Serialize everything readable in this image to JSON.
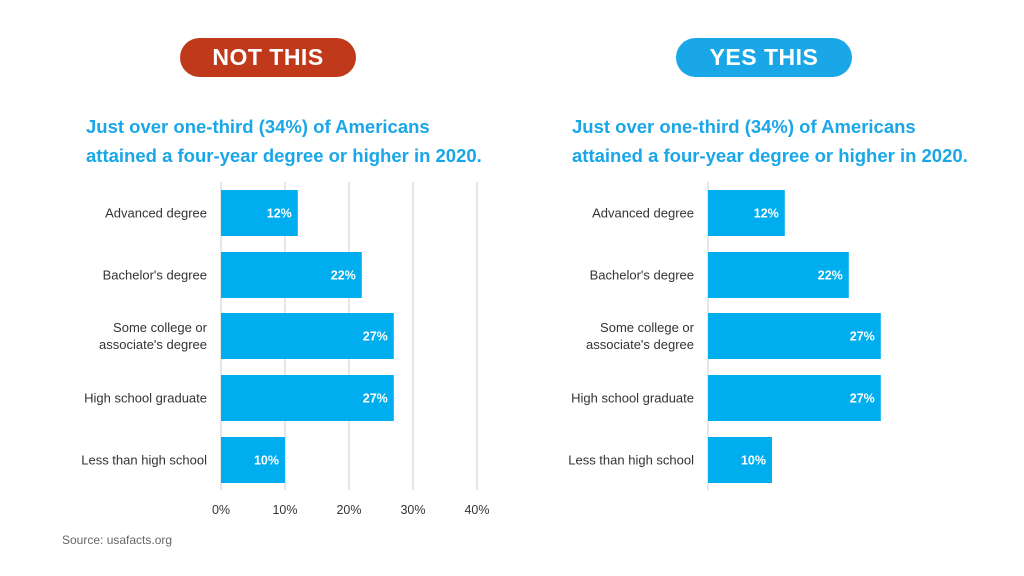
{
  "left_panel": {
    "badge": "NOT THIS",
    "badge_color": "#c0391b",
    "title_line1": "Just over one-third (34%) of Americans",
    "title_line2": "attained a four-year degree or higher in 2020."
  },
  "right_panel": {
    "badge": "YES THIS",
    "badge_color": "#1aa7e8",
    "title_line1": "Just over one-third (34%) of Americans",
    "title_line2": "attained a four-year degree or higher in 2020."
  },
  "source": "Source: usafacts.org",
  "chart_data": [
    {
      "type": "bar",
      "orientation": "horizontal",
      "categories": [
        "Advanced degree",
        "Bachelor's degree",
        "Some college or associate's degree",
        "High school graduate",
        "Less than high school"
      ],
      "values": [
        12,
        22,
        27,
        27,
        10
      ],
      "data_labels": [
        "12%",
        "22%",
        "27%",
        "27%",
        "10%"
      ],
      "xlim": [
        0,
        40
      ],
      "xticks": [
        "0%",
        "10%",
        "20%",
        "30%",
        "40%"
      ],
      "grid": true,
      "bar_color": "#00aeef"
    },
    {
      "type": "bar",
      "orientation": "horizontal",
      "categories": [
        "Advanced degree",
        "Bachelor's degree",
        "Some college or associate's degree",
        "High school graduate",
        "Less than high school"
      ],
      "values": [
        12,
        22,
        27,
        27,
        10
      ],
      "data_labels": [
        "12%",
        "22%",
        "27%",
        "27%",
        "10%"
      ],
      "xlim": [
        0,
        40
      ],
      "grid": false,
      "bar_color": "#00aeef"
    }
  ]
}
